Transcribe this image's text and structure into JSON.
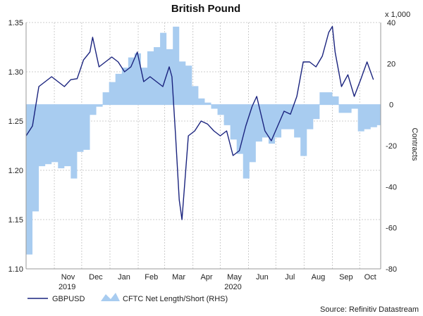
{
  "chart_data": {
    "type": "line",
    "title": "British Pound",
    "right_axis_multiplier": "x 1,000",
    "right_axis_label": "Contracts",
    "x_axis": {
      "month_labels": [
        "Nov",
        "Dec",
        "Jan",
        "Feb",
        "Mar",
        "Apr",
        "May",
        "Jun",
        "Jul",
        "Aug",
        "Sep",
        "Oct"
      ],
      "year_labels": [
        "2019",
        "2020"
      ]
    },
    "left_axis": {
      "ylim": [
        1.1,
        1.35
      ],
      "ticks": [
        "1.10",
        "1.15",
        "1.20",
        "1.25",
        "1.30",
        "1.35"
      ]
    },
    "right_axis": {
      "ylim": [
        -80,
        40
      ],
      "ticks": [
        "-80",
        "-60",
        "-40",
        "-20",
        "0",
        "20",
        "40"
      ]
    },
    "legend": {
      "placement": "bottom-left"
    },
    "source": "Source: Refinitiv Datastream",
    "colors": {
      "line": "#1a237e",
      "area": "#a8ccf0",
      "grid": "#cccccc",
      "axis": "#999999"
    },
    "series": [
      {
        "name": "GBPUSD",
        "axis": "left",
        "x": [
          "2019-10-01",
          "2019-10-08",
          "2019-10-15",
          "2019-10-22",
          "2019-10-29",
          "2019-11-05",
          "2019-11-12",
          "2019-11-19",
          "2019-11-26",
          "2019-12-03",
          "2019-12-10",
          "2019-12-13",
          "2019-12-20",
          "2019-12-27",
          "2020-01-03",
          "2020-01-10",
          "2020-01-17",
          "2020-01-24",
          "2020-01-31",
          "2020-02-07",
          "2020-02-14",
          "2020-02-21",
          "2020-02-28",
          "2020-03-06",
          "2020-03-09",
          "2020-03-13",
          "2020-03-17",
          "2020-03-20",
          "2020-03-27",
          "2020-04-03",
          "2020-04-10",
          "2020-04-17",
          "2020-04-24",
          "2020-05-01",
          "2020-05-08",
          "2020-05-15",
          "2020-05-22",
          "2020-05-29",
          "2020-06-05",
          "2020-06-10",
          "2020-06-19",
          "2020-06-26",
          "2020-07-03",
          "2020-07-10",
          "2020-07-17",
          "2020-07-24",
          "2020-07-31",
          "2020-08-07",
          "2020-08-14",
          "2020-08-21",
          "2020-08-28",
          "2020-09-01",
          "2020-09-04",
          "2020-09-11",
          "2020-09-18",
          "2020-09-25",
          "2020-10-02",
          "2020-10-09",
          "2020-10-16"
        ],
        "values": [
          1.235,
          1.245,
          1.285,
          1.29,
          1.295,
          1.29,
          1.285,
          1.292,
          1.293,
          1.312,
          1.32,
          1.335,
          1.305,
          1.31,
          1.315,
          1.31,
          1.3,
          1.305,
          1.32,
          1.29,
          1.295,
          1.29,
          1.285,
          1.305,
          1.295,
          1.235,
          1.17,
          1.15,
          1.235,
          1.24,
          1.25,
          1.247,
          1.24,
          1.235,
          1.24,
          1.215,
          1.22,
          1.245,
          1.265,
          1.275,
          1.24,
          1.23,
          1.245,
          1.26,
          1.257,
          1.275,
          1.31,
          1.31,
          1.305,
          1.316,
          1.34,
          1.346,
          1.32,
          1.285,
          1.297,
          1.275,
          1.292,
          1.31,
          1.292
        ]
      },
      {
        "name": "CFTC Net Length/Short (RHS)",
        "axis": "right",
        "x": [
          "2019-10-01",
          "2019-10-08",
          "2019-10-15",
          "2019-10-22",
          "2019-10-29",
          "2019-11-05",
          "2019-11-12",
          "2019-11-19",
          "2019-11-26",
          "2019-12-03",
          "2019-12-10",
          "2019-12-17",
          "2019-12-24",
          "2019-12-31",
          "2020-01-07",
          "2020-01-14",
          "2020-01-21",
          "2020-01-28",
          "2020-02-04",
          "2020-02-11",
          "2020-02-18",
          "2020-02-25",
          "2020-03-03",
          "2020-03-10",
          "2020-03-17",
          "2020-03-24",
          "2020-03-31",
          "2020-04-07",
          "2020-04-14",
          "2020-04-21",
          "2020-04-28",
          "2020-05-05",
          "2020-05-12",
          "2020-05-19",
          "2020-05-26",
          "2020-06-02",
          "2020-06-09",
          "2020-06-16",
          "2020-06-23",
          "2020-06-30",
          "2020-07-07",
          "2020-07-14",
          "2020-07-21",
          "2020-07-28",
          "2020-08-04",
          "2020-08-11",
          "2020-08-18",
          "2020-08-25",
          "2020-09-01",
          "2020-09-08",
          "2020-09-15",
          "2020-09-22",
          "2020-09-29",
          "2020-10-06",
          "2020-10-13",
          "2020-10-20"
        ],
        "values": [
          -73,
          -52,
          -30,
          -29,
          -28,
          -31,
          -30,
          -36,
          -23,
          -22,
          -5,
          -1,
          6,
          11,
          15,
          18,
          23,
          25,
          18,
          26,
          28,
          35,
          27,
          38,
          21,
          19,
          9,
          3,
          1,
          -2,
          -5,
          -10,
          -17,
          -24,
          -36,
          -28,
          -18,
          -16,
          -19,
          -16,
          -12,
          -12,
          -16,
          -25,
          -12,
          -7,
          6,
          6,
          4,
          -4,
          -4,
          -2,
          -13,
          -12,
          -11,
          -10
        ]
      }
    ]
  }
}
